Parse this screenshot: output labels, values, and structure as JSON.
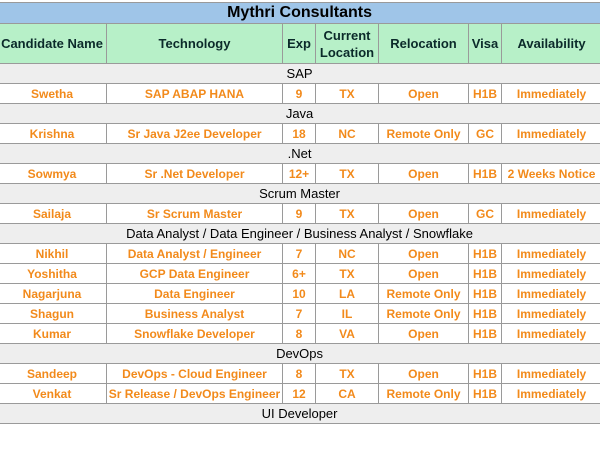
{
  "title": "Mythri Consultants",
  "headers": [
    "Candidate Name",
    "Technology",
    "Exp",
    "Current Location",
    "Relocation",
    "Visa",
    "Availability"
  ],
  "header_lines": {
    "current_location": [
      "Current",
      "Location"
    ]
  },
  "sections": [
    {
      "name": "SAP",
      "rows": [
        [
          "Swetha",
          "SAP ABAP HANA",
          "9",
          "TX",
          "Open",
          "H1B",
          "Immediately"
        ]
      ]
    },
    {
      "name": "Java",
      "rows": [
        [
          "Krishna",
          "Sr Java J2ee Developer",
          "18",
          "NC",
          "Remote Only",
          "GC",
          "Immediately"
        ]
      ]
    },
    {
      "name": ".Net",
      "rows": [
        [
          "Sowmya",
          "Sr .Net Developer",
          "12+",
          "TX",
          "Open",
          "H1B",
          "2 Weeks Notice"
        ]
      ]
    },
    {
      "name": "Scrum Master",
      "rows": [
        [
          "Sailaja",
          "Sr Scrum Master",
          "9",
          "TX",
          "Open",
          "GC",
          "Immediately"
        ]
      ]
    },
    {
      "name": "Data Analyst / Data Engineer / Business Analyst / Snowflake",
      "rows": [
        [
          "Nikhil",
          "Data Analyst / Engineer",
          "7",
          "NC",
          "Open",
          "H1B",
          "Immediately"
        ],
        [
          "Yoshitha",
          "GCP Data Engineer",
          "6+",
          "TX",
          "Open",
          "H1B",
          "Immediately"
        ],
        [
          "Nagarjuna",
          "Data Engineer",
          "10",
          "LA",
          "Remote Only",
          "H1B",
          "Immediately"
        ],
        [
          "Shagun",
          "Business Analyst",
          "7",
          "IL",
          "Remote Only",
          "H1B",
          "Immediately"
        ],
        [
          "Kumar",
          "Snowflake Developer",
          "8",
          "VA",
          "Open",
          "H1B",
          "Immediately"
        ]
      ]
    },
    {
      "name": "DevOps",
      "rows": [
        [
          "Sandeep",
          "DevOps - Cloud Engineer",
          "8",
          "TX",
          "Open",
          "H1B",
          "Immediately"
        ],
        [
          "Venkat",
          "Sr Release / DevOps Engineer",
          "12",
          "CA",
          "Remote Only",
          "H1B",
          "Immediately"
        ]
      ]
    },
    {
      "name": "UI Developer",
      "rows": []
    }
  ],
  "colors": {
    "title_bg": "#9fc5e8",
    "header_bg": "#b7f0c8",
    "section_bg": "#eeeeee",
    "row_text": "#f28a1b",
    "grid": "#9a9a9a"
  }
}
